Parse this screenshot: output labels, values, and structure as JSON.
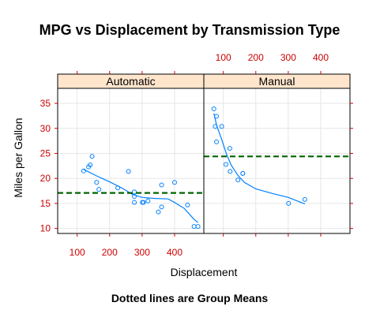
{
  "colors": {
    "axis": "#cc0000",
    "points": "#0080ff",
    "smooth": "#0080ff",
    "mean_line": "#006400",
    "strip_fill": "#ffe5cc",
    "grid": "#e6e6e6"
  },
  "chart_data": {
    "type": "scatter",
    "title": "MPG vs Displacement by Transmission Type",
    "footnote": "Dotted lines are Group Means",
    "xlabel": "Displacement",
    "ylabel": "Miles per Gallon",
    "xlim": [
      40,
      490
    ],
    "ylim": [
      9,
      38
    ],
    "x_ticks": [
      100,
      200,
      300,
      400
    ],
    "y_ticks": [
      10,
      15,
      20,
      25,
      30,
      35
    ],
    "grid": true,
    "panels": [
      {
        "name": "Automatic",
        "mean": 17.1,
        "points": [
          {
            "x": 120,
            "y": 21.5
          },
          {
            "x": 135,
            "y": 22.3
          },
          {
            "x": 140,
            "y": 22.7
          },
          {
            "x": 146,
            "y": 24.4
          },
          {
            "x": 160,
            "y": 19.2
          },
          {
            "x": 167,
            "y": 17.8
          },
          {
            "x": 225,
            "y": 18.1
          },
          {
            "x": 258,
            "y": 21.4
          },
          {
            "x": 276,
            "y": 16.4
          },
          {
            "x": 276,
            "y": 17.3
          },
          {
            "x": 276,
            "y": 15.2
          },
          {
            "x": 301,
            "y": 15.2
          },
          {
            "x": 304,
            "y": 15.2
          },
          {
            "x": 318,
            "y": 15.5
          },
          {
            "x": 350,
            "y": 13.3
          },
          {
            "x": 360,
            "y": 14.3
          },
          {
            "x": 360,
            "y": 18.7
          },
          {
            "x": 400,
            "y": 19.2
          },
          {
            "x": 440,
            "y": 14.7
          },
          {
            "x": 460,
            "y": 10.4
          },
          {
            "x": 472,
            "y": 10.4
          }
        ],
        "smooth": [
          [
            120,
            21.8
          ],
          [
            160,
            20.5
          ],
          [
            200,
            19.3
          ],
          [
            240,
            18.0
          ],
          [
            270,
            16.8
          ],
          [
            300,
            16.2
          ],
          [
            340,
            16.0
          ],
          [
            380,
            15.9
          ],
          [
            400,
            15.2
          ],
          [
            430,
            14.0
          ],
          [
            460,
            11.8
          ],
          [
            472,
            11.2
          ]
        ]
      },
      {
        "name": "Manual",
        "mean": 24.4,
        "points": [
          {
            "x": 71,
            "y": 33.9
          },
          {
            "x": 75,
            "y": 30.4
          },
          {
            "x": 79,
            "y": 27.3
          },
          {
            "x": 79,
            "y": 32.4
          },
          {
            "x": 95,
            "y": 30.4
          },
          {
            "x": 108,
            "y": 22.8
          },
          {
            "x": 120,
            "y": 26.0
          },
          {
            "x": 121,
            "y": 21.4
          },
          {
            "x": 145,
            "y": 19.7
          },
          {
            "x": 160,
            "y": 21.0
          },
          {
            "x": 160,
            "y": 21.0
          },
          {
            "x": 301,
            "y": 15.0
          },
          {
            "x": 351,
            "y": 15.8
          }
        ],
        "smooth": [
          [
            71,
            33.0
          ],
          [
            80,
            30.5
          ],
          [
            95,
            27.8
          ],
          [
            110,
            24.8
          ],
          [
            125,
            22.6
          ],
          [
            145,
            20.6
          ],
          [
            165,
            19.2
          ],
          [
            200,
            17.9
          ],
          [
            250,
            17.0
          ],
          [
            300,
            16.2
          ],
          [
            351,
            14.9
          ]
        ]
      }
    ]
  }
}
